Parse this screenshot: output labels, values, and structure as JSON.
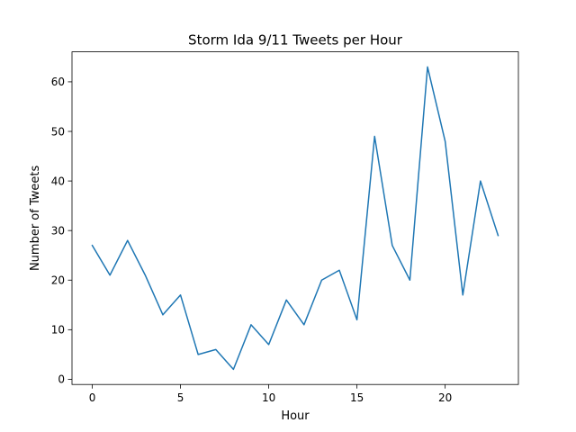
{
  "chart_data": {
    "type": "line",
    "title": "Storm Ida 9/11 Tweets per Hour",
    "xlabel": "Hour",
    "ylabel": "Number of Tweets",
    "x": [
      0,
      1,
      2,
      3,
      4,
      5,
      6,
      7,
      8,
      9,
      10,
      11,
      12,
      13,
      14,
      15,
      16,
      17,
      18,
      19,
      20,
      21,
      22,
      23
    ],
    "series": [
      {
        "values": [
          27,
          21,
          28,
          21,
          13,
          17,
          5,
          6,
          2,
          11,
          7,
          16,
          11,
          20,
          22,
          12,
          49,
          27,
          20,
          63,
          48,
          17,
          40,
          29
        ]
      }
    ],
    "xlim": [
      -1.15,
      24.15
    ],
    "ylim": [
      -1.05,
      66.05
    ],
    "xticks": [
      0,
      5,
      10,
      15,
      20
    ],
    "yticks": [
      0,
      10,
      20,
      30,
      40,
      50,
      60
    ],
    "grid": false,
    "line_color": "#1f77b4"
  }
}
